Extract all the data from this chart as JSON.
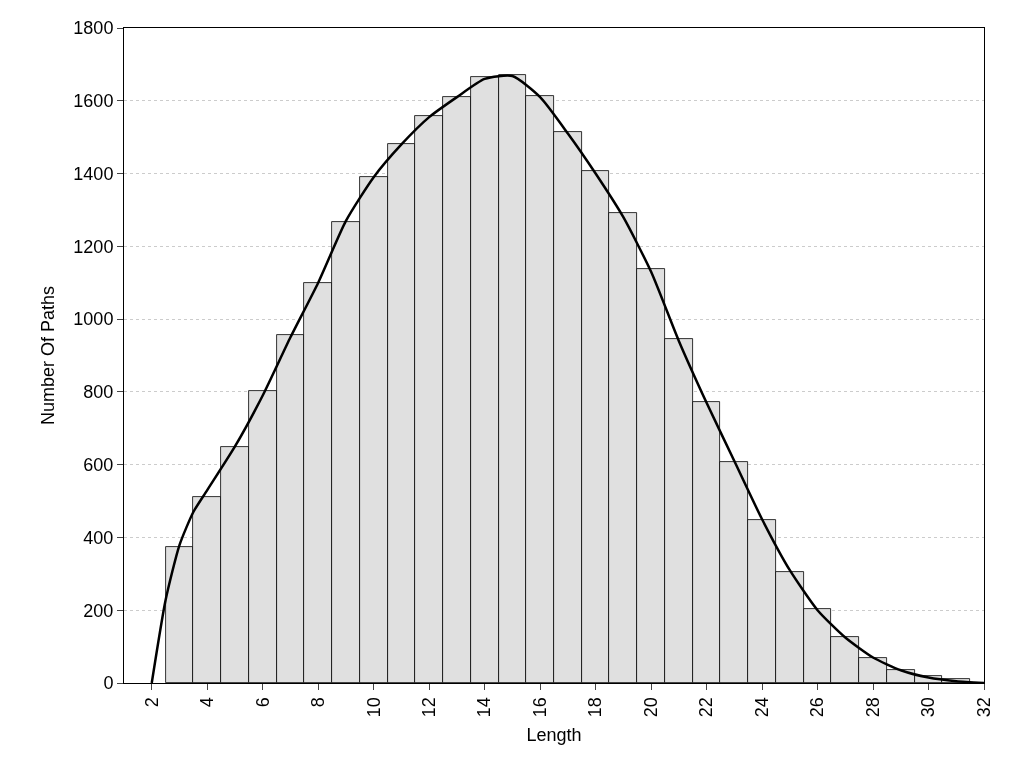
{
  "chart_data": {
    "type": "histogram",
    "xlabel": "Length",
    "ylabel": "Number Of Paths",
    "xlim": [
      1,
      32
    ],
    "xticks": [
      2,
      4,
      6,
      8,
      10,
      12,
      14,
      16,
      18,
      20,
      22,
      24,
      26,
      28,
      30,
      32
    ],
    "ylim": [
      0,
      1800
    ],
    "yticks": [
      0,
      200,
      400,
      600,
      800,
      1000,
      1200,
      1400,
      1600,
      1800
    ],
    "grid": "y",
    "legend": false,
    "line_style": "solid",
    "marker": "none",
    "series": [
      {
        "color": "#e0e0e0",
        "bins": [
          2.5,
          3.5,
          4.5,
          5.5,
          6.5,
          7.5,
          8.5,
          9.5,
          10.5,
          11.5,
          12.5,
          13.5,
          14.5,
          15.5,
          16.5,
          17.5,
          18.5,
          19.5,
          20.5,
          21.5,
          22.5,
          23.5,
          24.5,
          25.5,
          26.5,
          27.5,
          28.5,
          29.5,
          30.5,
          31.5
        ],
        "values": [
          374,
          511,
          648,
          802,
          956,
          1099,
          1266,
          1390,
          1481,
          1558,
          1610,
          1665,
          1670,
          1613,
          1514,
          1407,
          1291,
          1137,
          945,
          772,
          607,
          448,
          305,
          203,
          126,
          69,
          36,
          19,
          11
        ]
      },
      {
        "type": "line",
        "color": "#000000",
        "x": [
          2,
          2.5,
          3,
          3.5,
          4,
          5,
          6,
          7,
          8,
          9,
          10,
          11,
          12,
          13,
          14,
          15,
          16,
          17,
          18,
          19,
          20,
          21,
          22,
          23,
          24,
          25,
          26,
          27,
          28,
          29,
          30,
          31,
          32
        ],
        "values": [
          0,
          228,
          379,
          470,
          530,
          650,
          790,
          950,
          1100,
          1270,
          1390,
          1480,
          1555,
          1610,
          1660,
          1668,
          1610,
          1510,
          1400,
          1280,
          1130,
          940,
          770,
          610,
          450,
          310,
          200,
          125,
          70,
          35,
          15,
          5,
          0
        ]
      }
    ]
  }
}
